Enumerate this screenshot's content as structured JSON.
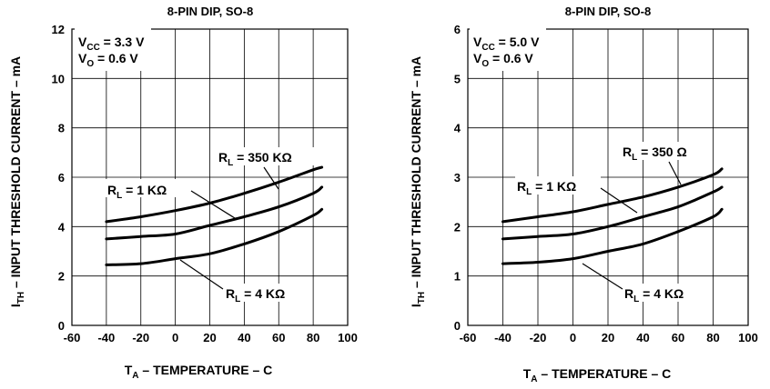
{
  "chart_data": [
    {
      "type": "line",
      "title": "8-PIN DIP, SO-8",
      "xlabel": "T_A – TEMPERATURE – C",
      "ylabel": "I_TH – INPUT THRESHOLD CURRENT – mA",
      "xlim": [
        -60,
        100
      ],
      "ylim": [
        0,
        12
      ],
      "xticks": [
        "-60",
        "-40",
        "-20",
        "0",
        "20",
        "40",
        "60",
        "80",
        "100"
      ],
      "yticks": [
        "0",
        "2",
        "4",
        "6",
        "8",
        "10",
        "12"
      ],
      "grid": true,
      "conditions": [
        "V_CC = 3.3 V",
        "V_O = 0.6 V"
      ],
      "series": [
        {
          "name": "R_L = 350 KΩ",
          "x": [
            -40,
            -20,
            0,
            20,
            40,
            60,
            80,
            85
          ],
          "y": [
            4.2,
            4.4,
            4.65,
            4.95,
            5.35,
            5.8,
            6.3,
            6.4
          ]
        },
        {
          "name": "R_L = 1 KΩ",
          "x": [
            -40,
            -20,
            0,
            20,
            40,
            60,
            80,
            85
          ],
          "y": [
            3.5,
            3.6,
            3.7,
            4.05,
            4.4,
            4.8,
            5.35,
            5.6
          ]
        },
        {
          "name": "R_L = 4 KΩ",
          "x": [
            -40,
            -20,
            0,
            20,
            40,
            60,
            80,
            85
          ],
          "y": [
            2.45,
            2.5,
            2.7,
            2.9,
            3.3,
            3.8,
            4.45,
            4.7
          ]
        }
      ]
    },
    {
      "type": "line",
      "title": "8-PIN DIP, SO-8",
      "xlabel": "T_A – TEMPERATURE – C",
      "ylabel": "I_TH – INPUT THRESHOLD CURRENT – mA",
      "xlim": [
        -60,
        100
      ],
      "ylim": [
        0,
        6
      ],
      "xticks": [
        "-60",
        "-40",
        "-20",
        "0",
        "20",
        "40",
        "60",
        "80",
        "100"
      ],
      "yticks": [
        "0",
        "1",
        "2",
        "3",
        "4",
        "5",
        "6"
      ],
      "grid": true,
      "conditions": [
        "V_CC = 5.0 V",
        "V_O = 0.6 V"
      ],
      "series": [
        {
          "name": "R_L = 350 Ω",
          "x": [
            -40,
            -20,
            0,
            20,
            40,
            60,
            80,
            85
          ],
          "y": [
            2.1,
            2.2,
            2.3,
            2.45,
            2.6,
            2.8,
            3.05,
            3.17
          ]
        },
        {
          "name": "R_L = 1 KΩ",
          "x": [
            -40,
            -20,
            0,
            20,
            40,
            60,
            80,
            85
          ],
          "y": [
            1.75,
            1.8,
            1.85,
            2.0,
            2.2,
            2.4,
            2.7,
            2.8
          ]
        },
        {
          "name": "R_L = 4 KΩ",
          "x": [
            -40,
            -20,
            0,
            20,
            40,
            60,
            80,
            85
          ],
          "y": [
            1.25,
            1.28,
            1.35,
            1.5,
            1.65,
            1.9,
            2.2,
            2.35
          ]
        }
      ]
    }
  ],
  "labels": {
    "left": {
      "title": "8-PIN DIP, SO-8",
      "ylabel_main": "I",
      "ylabel_sub": "TH",
      "ylabel_rest": " – INPUT THRESHOLD CURRENT – mA",
      "xlabel_main": "T",
      "xlabel_sub": "A",
      "xlabel_rest": " – TEMPERATURE – C",
      "cond1_main": "V",
      "cond1_sub": "CC",
      "cond1_rest": " = 3.3 V",
      "cond2_main": "V",
      "cond2_sub": "O",
      "cond2_rest": " = 0.6 V",
      "s0_main": "R",
      "s0_sub": "L",
      "s0_rest": " = 350 KΩ",
      "s1_main": "R",
      "s1_sub": "L",
      "s1_rest": " = 1 KΩ",
      "s2_main": "R",
      "s2_sub": "L",
      "s2_rest": " = 4 KΩ"
    },
    "right": {
      "title": "8-PIN DIP, SO-8",
      "ylabel_main": "I",
      "ylabel_sub": "TH",
      "ylabel_rest": " – INPUT THRESHOLD CURRENT – mA",
      "xlabel_main": "T",
      "xlabel_sub": "A",
      "xlabel_rest": " – TEMPERATURE – C",
      "cond1_main": "V",
      "cond1_sub": "CC",
      "cond1_rest": " = 5.0 V",
      "cond2_main": "V",
      "cond2_sub": "O",
      "cond2_rest": " = 0.6 V",
      "s0_main": "R",
      "s0_sub": "L",
      "s0_rest": " = 350 Ω",
      "s1_main": "R",
      "s1_sub": "L",
      "s1_rest": " = 1 KΩ",
      "s2_main": "R",
      "s2_sub": "L",
      "s2_rest": " = 4 KΩ"
    }
  }
}
